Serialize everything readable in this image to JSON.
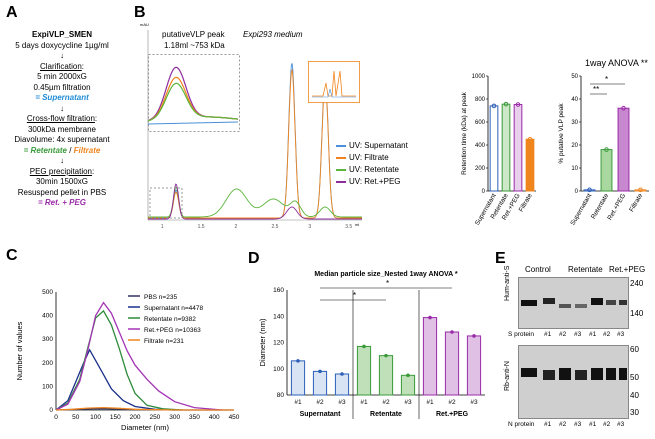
{
  "panels": {
    "a": "A",
    "b": "B",
    "c": "C",
    "d": "D",
    "e": "E"
  },
  "protocol": {
    "title": "ExpiVLP_SMEN",
    "induction": "5 days doxycycline 1µg/ml",
    "arrow": "↓",
    "clarification_label": "Clarification",
    "clarification_colon": ":",
    "clar_1": "5 min 2000xG",
    "clar_2": "0.45µm filtration",
    "clar_result": "= Supernatant",
    "cff_label": "Cross-flow filtration",
    "cff_colon": ":",
    "cff_1": "300kDa membrane",
    "cff_2": "Diavolume: 4x supernatant",
    "cff_eq": "= ",
    "cff_retentate": "Retentate",
    "cff_slash": " / ",
    "cff_filtrate": "Filtrate",
    "peg_label": "PEG precipitation",
    "peg_colon": ":",
    "peg_1": "30min 1500xG",
    "peg_2": "Resuspend  pellet in PBS",
    "peg_result": "= Ret. + PEG"
  },
  "chromatogram": {
    "inset_title": "putativeVLP peak",
    "inset_sub": "1.18ml ~753 kDa",
    "medium_label": "Expi293 medium",
    "yunit": "mAU",
    "xunit": "ml",
    "xticks": [
      "1",
      "1.5",
      "2",
      "2.5",
      "3",
      "3.5"
    ],
    "legend": [
      "UV: Supernatant",
      "UV: Filtrate",
      "UV: Retentate",
      "UV: Ret.+PEG"
    ],
    "colors": [
      "#4a90d9",
      "#f0851d",
      "#5bb53a",
      "#8e2e9e"
    ]
  },
  "chart_data": [
    {
      "type": "bar",
      "id": "retention",
      "ylabel": "Retention time (kDa) at peak",
      "ylim": [
        0,
        1000
      ],
      "yticks": [
        0,
        200,
        400,
        600,
        800,
        1000
      ],
      "categories": [
        "Supernatant",
        "Retentate",
        "Ret.+PEG",
        "Filtrate"
      ],
      "values": [
        740,
        755,
        752,
        450
      ]
    },
    {
      "type": "bar",
      "id": "percent",
      "title": "1way ANOVA **",
      "ylabel": "% putative VLP peak",
      "ylim": [
        0,
        50
      ],
      "yticks": [
        0,
        10,
        20,
        30,
        40,
        50
      ],
      "categories": [
        "Supernatant",
        "Retentate",
        "Ret.+PEG",
        "Filtrate"
      ],
      "values": [
        0.5,
        18,
        36,
        0.5
      ],
      "annotations": [
        "*",
        "**"
      ]
    },
    {
      "type": "line",
      "id": "size_distribution",
      "xlabel": "Diameter (nm)",
      "ylabel": "Number of values",
      "xlim": [
        0,
        450
      ],
      "ylim": [
        0,
        500
      ],
      "xticks": [
        0,
        50,
        100,
        150,
        200,
        250,
        300,
        350,
        400,
        450
      ],
      "yticks": [
        0,
        100,
        200,
        300,
        400,
        500
      ],
      "series": [
        {
          "name": "PBS n=235",
          "color": "#333366",
          "x": [
            0,
            40,
            80,
            120,
            160,
            200,
            300,
            450
          ],
          "y": [
            0,
            2,
            5,
            6,
            4,
            2,
            0,
            0
          ]
        },
        {
          "name": "Supernatant n=4478",
          "color": "#1a2f8a",
          "x": [
            0,
            30,
            50,
            70,
            85,
            100,
            120,
            140,
            170,
            200,
            250,
            300
          ],
          "y": [
            0,
            40,
            120,
            200,
            255,
            210,
            150,
            90,
            40,
            15,
            3,
            0
          ]
        },
        {
          "name": "Retentate n=9382",
          "color": "#2e8b3a",
          "x": [
            0,
            30,
            60,
            80,
            100,
            120,
            140,
            160,
            180,
            200,
            230,
            270,
            320
          ],
          "y": [
            0,
            30,
            130,
            260,
            390,
            420,
            360,
            260,
            150,
            70,
            20,
            5,
            0
          ]
        },
        {
          "name": "Ret.+PEG n=10363",
          "color": "#a334b5",
          "x": [
            0,
            30,
            60,
            80,
            100,
            120,
            140,
            160,
            180,
            200,
            230,
            260,
            300,
            350,
            420
          ],
          "y": [
            0,
            25,
            120,
            250,
            400,
            455,
            410,
            330,
            250,
            190,
            130,
            80,
            35,
            10,
            0
          ]
        },
        {
          "name": "Filtrate n=231",
          "color": "#f0851d",
          "x": [
            0,
            40,
            80,
            120,
            160,
            200,
            300,
            450
          ],
          "y": [
            0,
            3,
            8,
            10,
            7,
            3,
            0,
            0
          ]
        }
      ]
    },
    {
      "type": "bar",
      "id": "median_size",
      "title": "Median particle size_Nested 1way ANOVA *",
      "ylabel": "Diameter (nm)",
      "ylim": [
        80,
        160
      ],
      "yticks": [
        80,
        100,
        120,
        140,
        160
      ],
      "categories": [
        "#1",
        "#2",
        "#3",
        "#1",
        "#2",
        "#3",
        "#1",
        "#2",
        "#3"
      ],
      "groups": [
        "Supernatant",
        "Retentate",
        "Ret.+PEG"
      ],
      "values": [
        106,
        98,
        96,
        117,
        110,
        95,
        139,
        128,
        125
      ],
      "annotations": [
        "*",
        "*"
      ]
    }
  ],
  "blot": {
    "top_groups": [
      "Control",
      "Retentate",
      "Ret.+PEG"
    ],
    "ylabel_top": "Hum-anti-S",
    "ylabel_bot": "Rb-anti-N",
    "mw_top": [
      "240",
      "140"
    ],
    "mw_bot": [
      "60",
      "50",
      "40",
      "30"
    ],
    "lanes_top": [
      "S protein",
      "#1",
      "#2",
      "#3",
      "#1",
      "#2",
      "#3"
    ],
    "lanes_bot": [
      "N protein",
      "#1",
      "#2",
      "#3",
      "#1",
      "#2",
      "#3"
    ]
  }
}
